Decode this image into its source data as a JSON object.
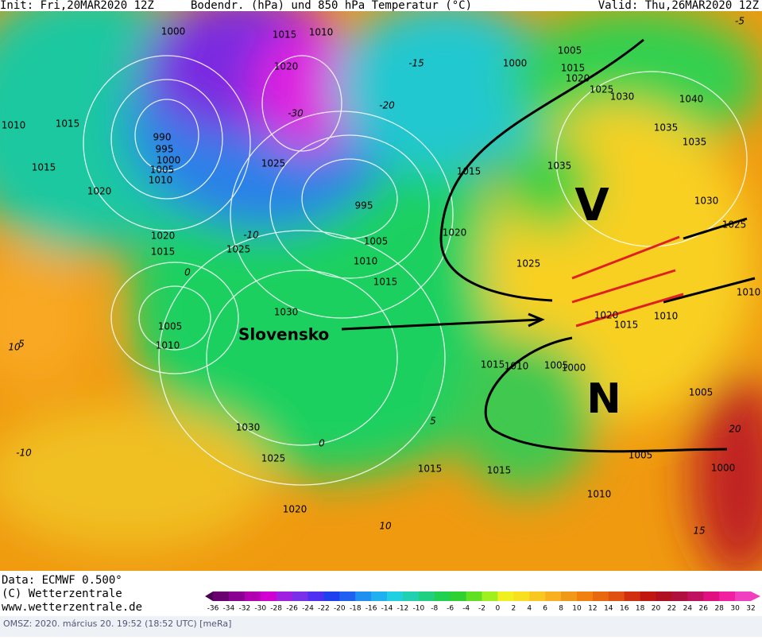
{
  "header": {
    "init": "Init: Fri,20MAR2020 12Z",
    "title": "Bodendr. (hPa) und 850 hPa Temperatur (°C)",
    "valid": "Valid: Thu,26MAR2020 12Z"
  },
  "map": {
    "isobar_labels": [
      "1000",
      "1015",
      "1010",
      "1020",
      "1005",
      "1000",
      "1015",
      "1020",
      "1025",
      "1030",
      "1040",
      "1010",
      "1015",
      "990",
      "995",
      "1000",
      "1005",
      "1010",
      "1035",
      "1035",
      "1015",
      "1025",
      "1035",
      "1015",
      "1020",
      "995",
      "1030",
      "1025",
      "1020",
      "1015",
      "1025",
      "1020",
      "1005",
      "1010",
      "1025",
      "1015",
      "1030",
      "1020",
      "1015",
      "1010",
      "1005",
      "1010",
      "1015",
      "1010",
      "1005",
      "1000",
      "1005",
      "1030",
      "1025",
      "1015",
      "1015",
      "1005",
      "1000",
      "1010",
      "1020",
      "1010"
    ],
    "temperature_labels": [
      "-5",
      "-15",
      "-20",
      "-30",
      "-10",
      "0",
      "5",
      "10",
      "-10",
      "5",
      "0",
      "10",
      "15",
      "20"
    ],
    "annotations": {
      "country": "Slovensko",
      "upper": "V",
      "lower": "N"
    }
  },
  "footer": {
    "data": "Data: ECMWF   0.500°",
    "copyright": "(C) Wetterzentrale",
    "url": "www.wetterzentrale.de"
  },
  "colorbar": {
    "ticks": [
      -36,
      -34,
      -32,
      -30,
      -28,
      -26,
      -24,
      -22,
      -20,
      -18,
      -16,
      -14,
      -12,
      -10,
      -8,
      -6,
      -4,
      -2,
      0,
      2,
      4,
      6,
      8,
      10,
      12,
      14,
      16,
      18,
      20,
      22,
      24,
      26,
      28,
      30,
      32
    ]
  },
  "status_bar": "OMSZ: 2020. március 20. 19:52 (18:52  UTC)  [meRa]"
}
